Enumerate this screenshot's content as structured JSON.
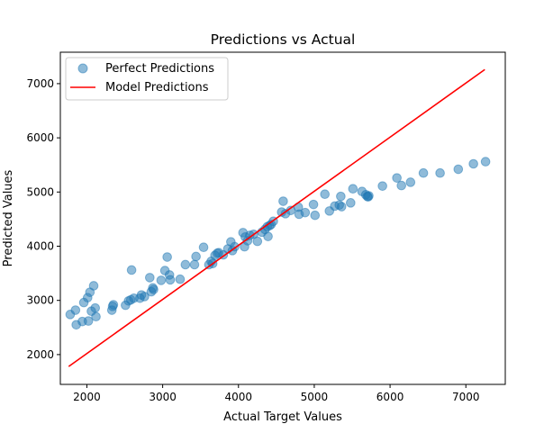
{
  "chart_data": {
    "type": "scatter",
    "title": "Predictions vs Actual",
    "xlabel": "Actual Target Values",
    "ylabel": "Predicted Values",
    "xlim": [
      1650,
      7520
    ],
    "ylim": [
      1450,
      7580
    ],
    "xticks": [
      2000,
      3000,
      4000,
      5000,
      6000,
      7000
    ],
    "yticks": [
      2000,
      3000,
      4000,
      5000,
      6000,
      7000
    ],
    "legend_position": "upper-left",
    "grid": false,
    "series": [
      {
        "name": "Perfect Predictions",
        "kind": "scatter",
        "color": "#1f77b4",
        "alpha": 0.5,
        "points": [
          [
            1780,
            2740
          ],
          [
            1850,
            2820
          ],
          [
            1860,
            2550
          ],
          [
            1940,
            2610
          ],
          [
            1960,
            2960
          ],
          [
            2010,
            3050
          ],
          [
            2020,
            2620
          ],
          [
            2040,
            3150
          ],
          [
            2060,
            2800
          ],
          [
            2090,
            3270
          ],
          [
            2110,
            2860
          ],
          [
            2120,
            2700
          ],
          [
            2330,
            2820
          ],
          [
            2340,
            2890
          ],
          [
            2350,
            2920
          ],
          [
            2510,
            2910
          ],
          [
            2550,
            2990
          ],
          [
            2580,
            3010
          ],
          [
            2590,
            3560
          ],
          [
            2620,
            3040
          ],
          [
            2700,
            3040
          ],
          [
            2720,
            3100
          ],
          [
            2760,
            3070
          ],
          [
            2830,
            3420
          ],
          [
            2850,
            3160
          ],
          [
            2870,
            3230
          ],
          [
            2880,
            3200
          ],
          [
            2980,
            3370
          ],
          [
            3030,
            3550
          ],
          [
            3060,
            3800
          ],
          [
            3090,
            3470
          ],
          [
            3100,
            3380
          ],
          [
            3230,
            3390
          ],
          [
            3300,
            3660
          ],
          [
            3420,
            3660
          ],
          [
            3440,
            3810
          ],
          [
            3540,
            3980
          ],
          [
            3610,
            3660
          ],
          [
            3640,
            3720
          ],
          [
            3660,
            3680
          ],
          [
            3690,
            3830
          ],
          [
            3720,
            3870
          ],
          [
            3740,
            3880
          ],
          [
            3800,
            3840
          ],
          [
            3860,
            3950
          ],
          [
            3900,
            4080
          ],
          [
            3920,
            3920
          ],
          [
            3950,
            3990
          ],
          [
            4060,
            4250
          ],
          [
            4080,
            3990
          ],
          [
            4090,
            4170
          ],
          [
            4120,
            4100
          ],
          [
            4150,
            4200
          ],
          [
            4200,
            4220
          ],
          [
            4250,
            4090
          ],
          [
            4310,
            4260
          ],
          [
            4350,
            4310
          ],
          [
            4380,
            4360
          ],
          [
            4390,
            4180
          ],
          [
            4410,
            4380
          ],
          [
            4430,
            4400
          ],
          [
            4460,
            4460
          ],
          [
            4570,
            4630
          ],
          [
            4590,
            4830
          ],
          [
            4620,
            4600
          ],
          [
            4690,
            4660
          ],
          [
            4790,
            4720
          ],
          [
            4800,
            4590
          ],
          [
            4880,
            4620
          ],
          [
            4990,
            4770
          ],
          [
            5010,
            4570
          ],
          [
            5140,
            4960
          ],
          [
            5200,
            4650
          ],
          [
            5270,
            4740
          ],
          [
            5330,
            4760
          ],
          [
            5350,
            4920
          ],
          [
            5360,
            4730
          ],
          [
            5480,
            4800
          ],
          [
            5510,
            5060
          ],
          [
            5630,
            5010
          ],
          [
            5680,
            4950
          ],
          [
            5700,
            4920
          ],
          [
            5710,
            4910
          ],
          [
            5720,
            4930
          ],
          [
            5900,
            5110
          ],
          [
            6090,
            5260
          ],
          [
            6150,
            5120
          ],
          [
            6270,
            5180
          ],
          [
            6440,
            5350
          ],
          [
            6660,
            5350
          ],
          [
            6900,
            5420
          ],
          [
            7100,
            5520
          ],
          [
            7260,
            5560
          ]
        ]
      },
      {
        "name": "Model Predictions",
        "kind": "line",
        "color": "#ff0000",
        "points": [
          [
            1760,
            1780
          ],
          [
            7250,
            7260
          ]
        ]
      }
    ]
  }
}
